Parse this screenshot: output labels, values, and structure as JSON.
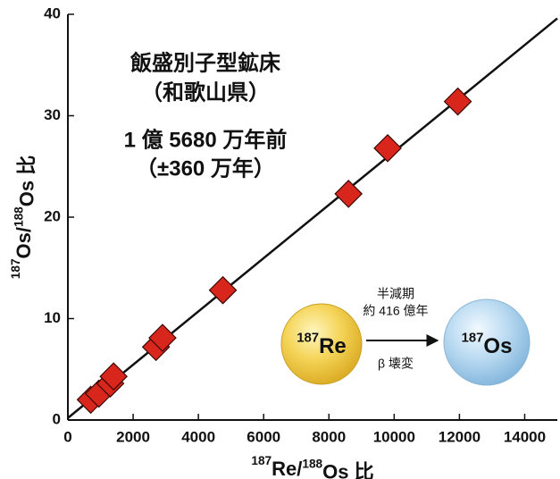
{
  "chart_data": {
    "type": "scatter",
    "x_label": [
      "187",
      "Re/",
      "188",
      "Os 比"
    ],
    "y_label": [
      "187",
      "Os/",
      "188",
      "Os 比"
    ],
    "xlim": [
      0,
      15000
    ],
    "xticks": [
      0,
      2000,
      4000,
      6000,
      8000,
      10000,
      12000,
      14000
    ],
    "ylim": [
      0,
      40
    ],
    "yticks": [
      0,
      10,
      20,
      30,
      40
    ],
    "series": [
      {
        "color": "#d8261c",
        "x": [
          700,
          950,
          1300,
          1400,
          2700,
          2900,
          4750,
          8600,
          9800,
          11950
        ],
        "values": [
          2.0,
          2.6,
          3.6,
          4.3,
          7.2,
          8.1,
          12.8,
          22.3,
          26.8,
          31.4
        ]
      }
    ],
    "fit_line": {
      "x": [
        0,
        15000
      ],
      "values": [
        0.2,
        39.6
      ]
    },
    "annotations": [
      "飯盛別子型鉱床",
      "（和歌山県）",
      "1 億 5680 万年前",
      "（±360 万年）"
    ],
    "diagram": {
      "parent": [
        "187",
        "Re"
      ],
      "daughter": [
        "187",
        "Os"
      ],
      "half_life_label": "半減期",
      "half_life": "約 416 億年",
      "decay": "β 壊変"
    }
  }
}
